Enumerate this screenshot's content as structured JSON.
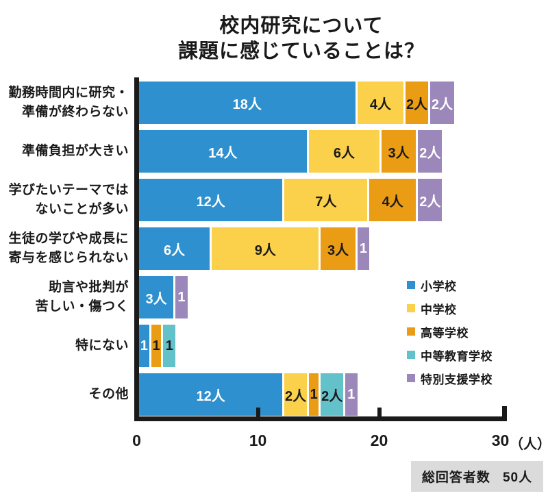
{
  "title": {
    "line1": "校内研究について",
    "line2": "課題に感じていることは？"
  },
  "chart_data": {
    "type": "bar",
    "orientation": "horizontal-stacked",
    "title": "校内研究について 課題に感じていることは？",
    "categories": [
      [
        "勤務時間内に研究・",
        "準備が終わらない"
      ],
      [
        "準備負担が大きい"
      ],
      [
        "学びたいテーマでは",
        "ないことが多い"
      ],
      [
        "生徒の学びや成長に",
        "寄与を感じられない"
      ],
      [
        "助言や批判が",
        "苦しい・傷つく"
      ],
      [
        "特にない"
      ],
      [
        "その他"
      ]
    ],
    "series": [
      {
        "name": "小学校",
        "color": "#2E90CE",
        "text_color": "#FFFFFF",
        "values": [
          18,
          14,
          12,
          6,
          3,
          1,
          12
        ],
        "labels": [
          "18人",
          "14人",
          "12人",
          "6人",
          "3人",
          "1",
          "12人"
        ]
      },
      {
        "name": "中学校",
        "color": "#FBD04A",
        "text_color": "#1A1A1A",
        "values": [
          4,
          6,
          7,
          9,
          0,
          0,
          2
        ],
        "labels": [
          "4人",
          "6人",
          "7人",
          "9人",
          "",
          "",
          "2人"
        ]
      },
      {
        "name": "高等学校",
        "color": "#EA9C15",
        "text_color": "#1A1A1A",
        "values": [
          2,
          3,
          4,
          3,
          0,
          1,
          1
        ],
        "labels": [
          "2人",
          "3人",
          "4人",
          "3人",
          "",
          "1",
          "1"
        ]
      },
      {
        "name": "中等教育学校",
        "color": "#63C1C9",
        "text_color": "#1A1A1A",
        "values": [
          0,
          0,
          0,
          0,
          0,
          1,
          2
        ],
        "labels": [
          "",
          "",
          "",
          "",
          "",
          "1",
          "2人"
        ]
      },
      {
        "name": "特別支援学校",
        "color": "#9C87BB",
        "text_color": "#FFFFFF",
        "values": [
          2,
          2,
          2,
          1,
          1,
          0,
          1
        ],
        "labels": [
          "2人",
          "2人",
          "2人",
          "1",
          "1",
          "",
          "1"
        ]
      }
    ],
    "xlim": [
      0,
      30
    ],
    "x_ticks": [
      "0",
      "10",
      "20",
      "30"
    ],
    "x_unit": "（人）",
    "value_unit": "人",
    "legend_position": "inside-right",
    "grid": false
  },
  "colors": {
    "background": "#FFFFFF",
    "axis": "#1A1A1A",
    "footer_box_bg": "#DBDBDB"
  },
  "footer": {
    "label": "総回答者数",
    "value": "50人"
  }
}
